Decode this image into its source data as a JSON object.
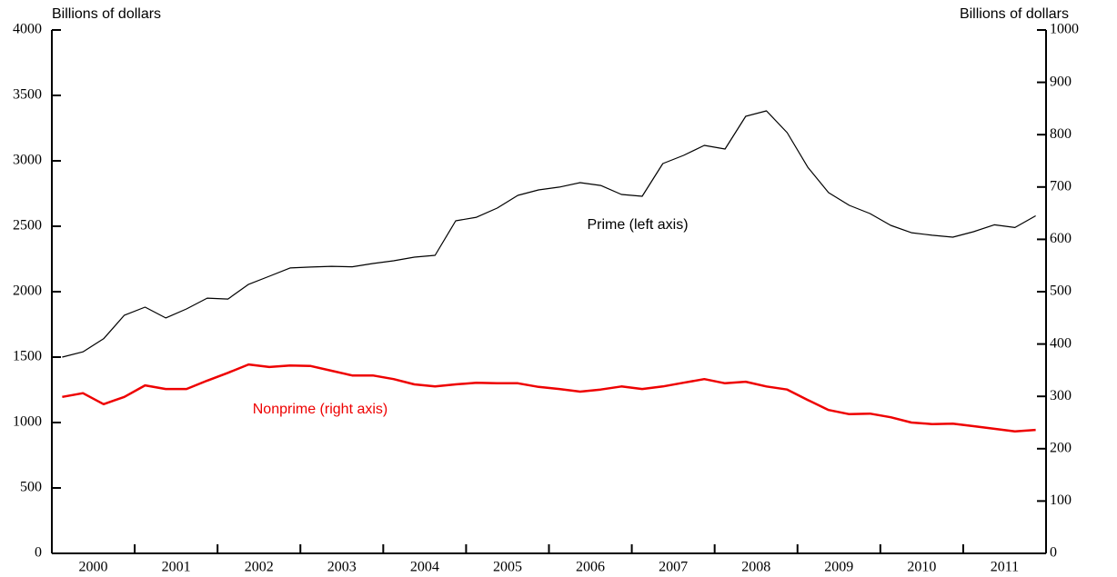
{
  "chart_data": {
    "type": "line",
    "y_label": "Billions of dollars",
    "y2_label": "Billions of dollars",
    "annotations": [
      "Prime (left axis)",
      "Nonprime (right axis)"
    ],
    "categories": [
      "2000",
      null,
      null,
      null,
      "2001",
      null,
      null,
      null,
      "2002",
      null,
      null,
      null,
      "2003",
      null,
      null,
      null,
      "2004",
      null,
      null,
      null,
      "2005",
      null,
      null,
      null,
      "2006",
      null,
      null,
      null,
      "2007",
      null,
      null,
      null,
      "2008",
      null,
      null,
      null,
      "2009",
      null,
      null,
      null,
      "2010",
      null,
      null,
      null,
      "2011",
      null,
      null,
      null
    ],
    "series": [
      {
        "name": "Prime",
        "color": "#000000",
        "axis": "y",
        "values": [
          1500,
          1540,
          1640,
          1820,
          1882,
          1799,
          1868,
          1951,
          1944,
          2056,
          2118,
          2181,
          2188,
          2194,
          2190,
          2215,
          2236,
          2264,
          2278,
          2542,
          2569,
          2639,
          2736,
          2778,
          2799,
          2833,
          2812,
          2743,
          2729,
          2979,
          3042,
          3118,
          3090,
          3340,
          3382,
          3215,
          2951,
          2757,
          2660,
          2597,
          2507,
          2451,
          2431,
          2417,
          2458,
          2511,
          2490,
          2580
        ]
      },
      {
        "name": "Nonprime",
        "color": "#ee0000",
        "axis": "y2",
        "values": [
          299,
          306,
          285,
          299,
          321,
          314,
          314,
          330,
          345,
          361,
          356,
          359,
          358,
          349,
          340,
          340,
          333,
          323,
          319,
          323,
          326,
          325,
          325,
          318,
          314,
          309,
          313,
          319,
          314,
          319,
          326,
          333,
          325,
          328,
          319,
          313,
          293,
          274,
          266,
          267,
          260,
          250,
          247,
          248,
          243,
          238,
          233,
          236
        ]
      }
    ],
    "ylim": [
      0,
      4000
    ],
    "yticks": [
      0,
      500,
      1000,
      1500,
      2000,
      2500,
      3000,
      3500,
      4000
    ],
    "y2lim": [
      0,
      1000
    ],
    "y2ticks": [
      0,
      100,
      200,
      300,
      400,
      500,
      600,
      700,
      800,
      900,
      1000
    ]
  }
}
